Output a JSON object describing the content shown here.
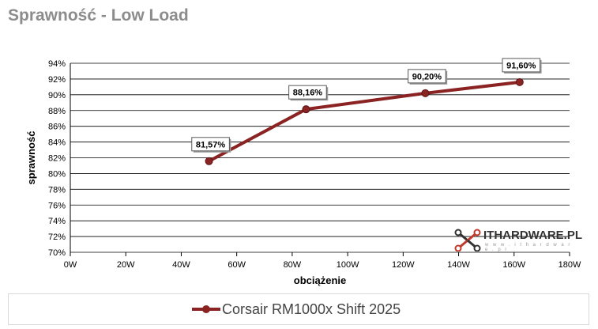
{
  "title": "Sprawność - Low Load",
  "logo": {
    "text": "ITHARDWARE.PL",
    "sub": "w w w . i t h a r d w a r e . p l",
    "icon": "network-logo-icon"
  },
  "colors": {
    "series": "#8b2323",
    "grid": "#000000",
    "label_border": "#595959"
  },
  "chart_data": {
    "type": "line",
    "xlabel": "obciążenie",
    "ylabel": "sprawność",
    "xlim": [
      0,
      180
    ],
    "ylim": [
      70,
      94
    ],
    "x_ticks": [
      "0W",
      "20W",
      "40W",
      "60W",
      "80W",
      "100W",
      "120W",
      "140W",
      "160W",
      "180W"
    ],
    "y_ticks": [
      "70%",
      "72%",
      "74%",
      "76%",
      "78%",
      "80%",
      "82%",
      "84%",
      "86%",
      "88%",
      "90%",
      "92%",
      "94%"
    ],
    "grid": true,
    "legend_position": "bottom",
    "series": [
      {
        "name": "Corsair RM1000x Shift 2025",
        "x": [
          50,
          85,
          128,
          162
        ],
        "y": [
          81.57,
          88.16,
          90.2,
          91.6
        ],
        "labels": [
          "81,57%",
          "88,16%",
          "90,20%",
          "91,60%"
        ]
      }
    ]
  }
}
